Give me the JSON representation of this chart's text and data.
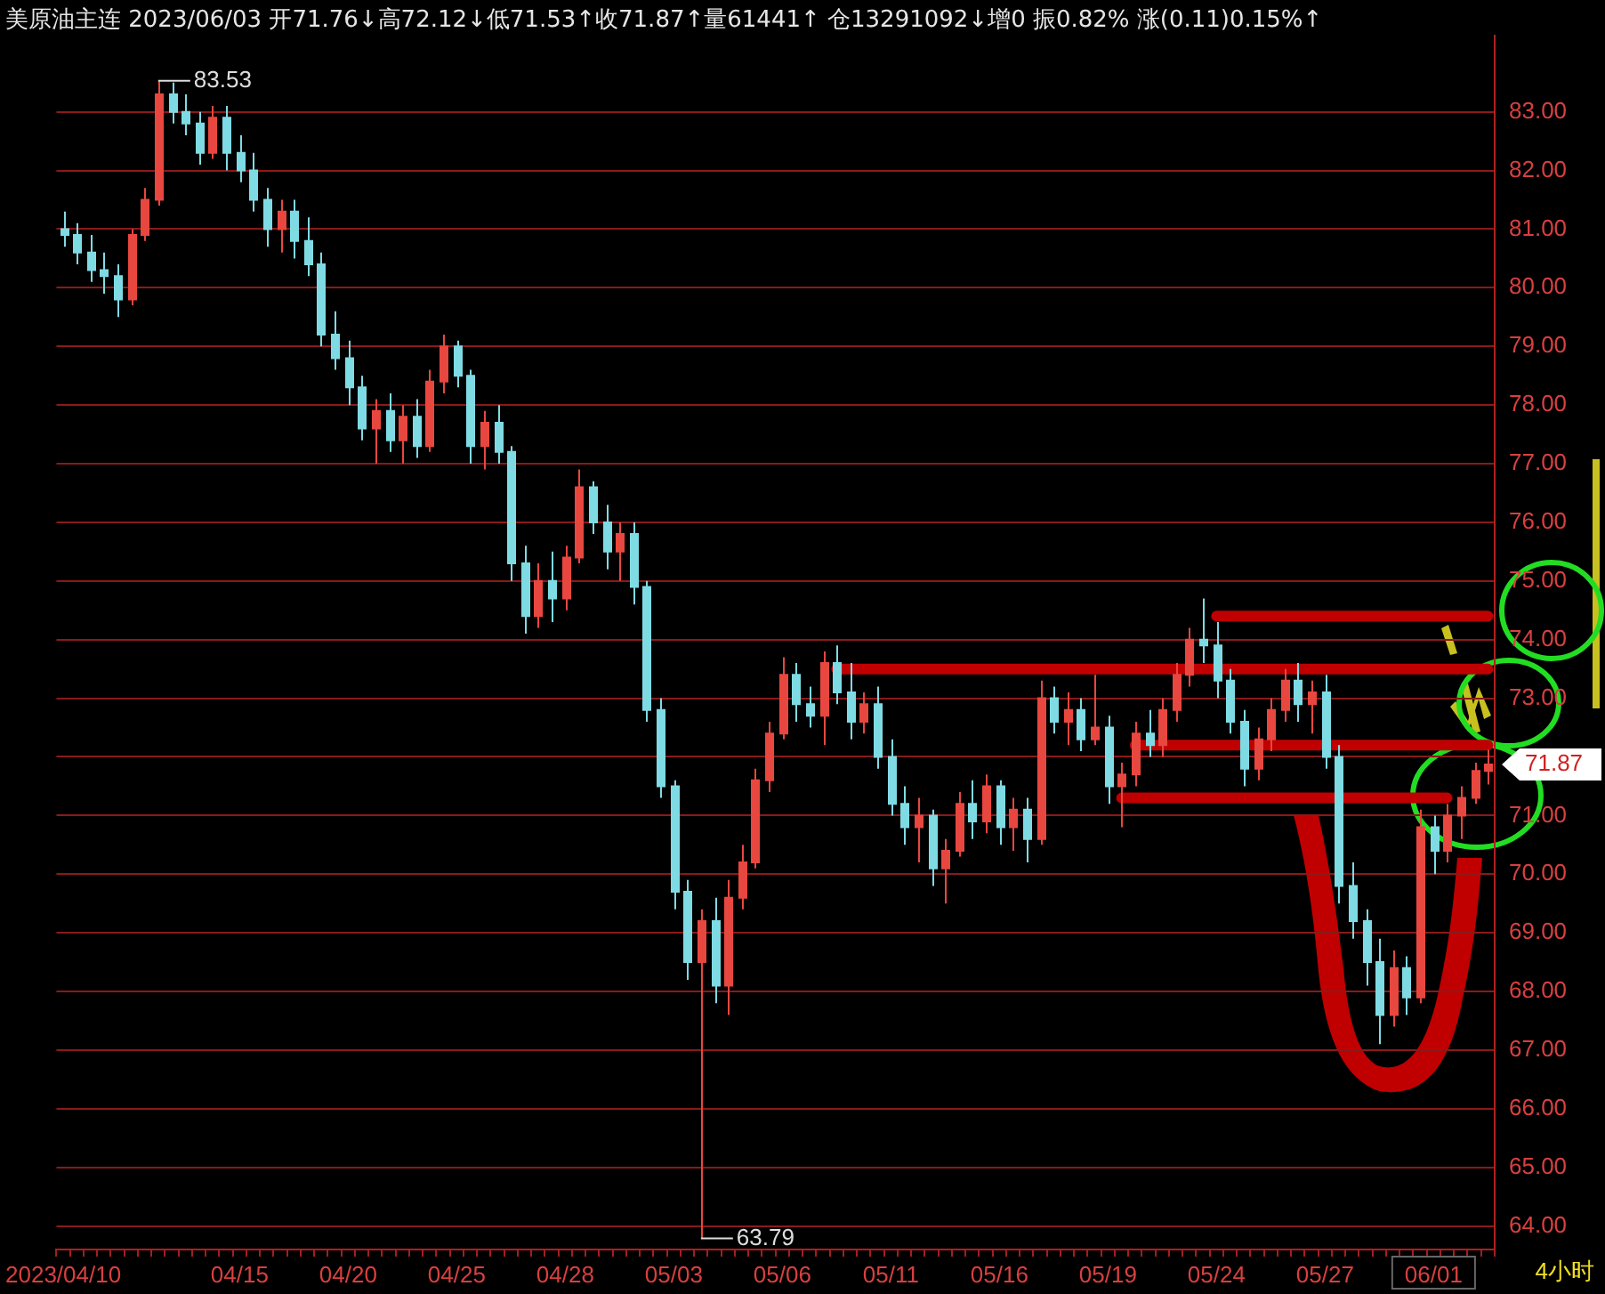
{
  "chart_data": {
    "type": "candlestick",
    "title": "美原油主连 2023/06/03 开71.76↓高72.12↓低71.53↑收71.87↑量61441↑ 仓13291092↓增0 振0.82% 涨(0.11)0.15%↑",
    "categories": [
      "2023/04/10",
      null,
      null,
      null,
      null,
      null,
      null,
      null,
      null,
      null,
      null,
      null,
      null,
      "04/15",
      null,
      null,
      null,
      null,
      null,
      null,
      null,
      "04/20",
      null,
      null,
      null,
      null,
      null,
      null,
      null,
      "04/25",
      null,
      null,
      null,
      null,
      null,
      null,
      null,
      "04/28",
      null,
      null,
      null,
      null,
      null,
      null,
      null,
      "05/03",
      null,
      null,
      null,
      null,
      null,
      null,
      null,
      "05/06",
      null,
      null,
      null,
      null,
      null,
      null,
      null,
      "05/11",
      null,
      null,
      null,
      null,
      null,
      null,
      null,
      "05/16",
      null,
      null,
      null,
      null,
      null,
      null,
      null,
      "05/19",
      null,
      null,
      null,
      null,
      null,
      null,
      null,
      "05/24",
      null,
      null,
      null,
      null,
      null,
      null,
      null,
      "05/27",
      null,
      null,
      null,
      null,
      null,
      null,
      null,
      "06/01",
      null,
      null,
      null,
      null
    ],
    "ohlc": [
      [
        81.0,
        81.3,
        80.7,
        80.9
      ],
      [
        80.9,
        81.1,
        80.4,
        80.6
      ],
      [
        80.6,
        80.9,
        80.1,
        80.3
      ],
      [
        80.3,
        80.6,
        79.9,
        80.2
      ],
      [
        80.2,
        80.4,
        79.5,
        79.8
      ],
      [
        79.8,
        81.0,
        79.7,
        80.9
      ],
      [
        80.9,
        81.7,
        80.8,
        81.5
      ],
      [
        81.5,
        83.53,
        81.4,
        83.3
      ],
      [
        83.3,
        83.5,
        82.8,
        83.0
      ],
      [
        83.0,
        83.3,
        82.6,
        82.8
      ],
      [
        82.8,
        83.0,
        82.1,
        82.3
      ],
      [
        82.3,
        83.1,
        82.2,
        82.9
      ],
      [
        82.9,
        83.1,
        82.0,
        82.3
      ],
      [
        82.3,
        82.6,
        81.8,
        82.0
      ],
      [
        82.0,
        82.3,
        81.3,
        81.5
      ],
      [
        81.5,
        81.7,
        80.7,
        81.0
      ],
      [
        81.0,
        81.5,
        80.6,
        81.3
      ],
      [
        81.3,
        81.5,
        80.5,
        80.8
      ],
      [
        80.8,
        81.2,
        80.2,
        80.4
      ],
      [
        80.4,
        80.6,
        79.0,
        79.2
      ],
      [
        79.2,
        79.6,
        78.6,
        78.8
      ],
      [
        78.8,
        79.1,
        78.0,
        78.3
      ],
      [
        78.3,
        78.5,
        77.4,
        77.6
      ],
      [
        77.6,
        78.1,
        77.0,
        77.9
      ],
      [
        77.9,
        78.2,
        77.2,
        77.4
      ],
      [
        77.4,
        78.0,
        77.0,
        77.8
      ],
      [
        77.8,
        78.1,
        77.1,
        77.3
      ],
      [
        77.3,
        78.6,
        77.2,
        78.4
      ],
      [
        78.4,
        79.2,
        78.2,
        79.0
      ],
      [
        79.0,
        79.1,
        78.3,
        78.5
      ],
      [
        78.5,
        78.6,
        77.0,
        77.3
      ],
      [
        77.3,
        77.9,
        76.9,
        77.7
      ],
      [
        77.7,
        78.0,
        77.0,
        77.2
      ],
      [
        77.2,
        77.3,
        75.0,
        75.3
      ],
      [
        75.3,
        75.6,
        74.1,
        74.4
      ],
      [
        74.4,
        75.3,
        74.2,
        75.0
      ],
      [
        75.0,
        75.5,
        74.3,
        74.7
      ],
      [
        74.7,
        75.6,
        74.5,
        75.4
      ],
      [
        75.4,
        76.9,
        75.3,
        76.6
      ],
      [
        76.6,
        76.7,
        75.8,
        76.0
      ],
      [
        76.0,
        76.3,
        75.2,
        75.5
      ],
      [
        75.5,
        76.0,
        75.0,
        75.8
      ],
      [
        75.8,
        76.0,
        74.6,
        74.9
      ],
      [
        74.9,
        75.0,
        72.6,
        72.8
      ],
      [
        72.8,
        73.0,
        71.3,
        71.5
      ],
      [
        71.5,
        71.6,
        69.4,
        69.7
      ],
      [
        69.7,
        69.9,
        68.2,
        68.5
      ],
      [
        68.5,
        69.4,
        63.79,
        69.2
      ],
      [
        69.2,
        69.6,
        67.8,
        68.1
      ],
      [
        68.1,
        69.9,
        67.6,
        69.6
      ],
      [
        69.6,
        70.5,
        69.4,
        70.2
      ],
      [
        70.2,
        71.8,
        70.1,
        71.6
      ],
      [
        71.6,
        72.6,
        71.4,
        72.4
      ],
      [
        72.4,
        73.7,
        72.3,
        73.4
      ],
      [
        73.4,
        73.6,
        72.6,
        72.9
      ],
      [
        72.9,
        73.2,
        72.5,
        72.7
      ],
      [
        72.7,
        73.8,
        72.2,
        73.6
      ],
      [
        73.6,
        73.9,
        72.9,
        73.1
      ],
      [
        73.1,
        73.6,
        72.3,
        72.6
      ],
      [
        72.6,
        73.1,
        72.4,
        72.9
      ],
      [
        72.9,
        73.2,
        71.8,
        72.0
      ],
      [
        72.0,
        72.3,
        71.0,
        71.2
      ],
      [
        71.2,
        71.5,
        70.5,
        70.8
      ],
      [
        70.8,
        71.3,
        70.2,
        71.0
      ],
      [
        71.0,
        71.1,
        69.8,
        70.1
      ],
      [
        70.1,
        70.6,
        69.5,
        70.4
      ],
      [
        70.4,
        71.4,
        70.3,
        71.2
      ],
      [
        71.2,
        71.6,
        70.6,
        70.9
      ],
      [
        70.9,
        71.7,
        70.7,
        71.5
      ],
      [
        71.5,
        71.6,
        70.5,
        70.8
      ],
      [
        70.8,
        71.3,
        70.4,
        71.1
      ],
      [
        71.1,
        71.3,
        70.2,
        70.6
      ],
      [
        70.6,
        73.3,
        70.5,
        73.0
      ],
      [
        73.0,
        73.2,
        72.4,
        72.6
      ],
      [
        72.6,
        73.1,
        72.2,
        72.8
      ],
      [
        72.8,
        73.0,
        72.1,
        72.3
      ],
      [
        72.3,
        73.4,
        72.2,
        72.5
      ],
      [
        72.5,
        72.7,
        71.2,
        71.5
      ],
      [
        71.5,
        71.9,
        70.8,
        71.7
      ],
      [
        71.7,
        72.6,
        71.5,
        72.4
      ],
      [
        72.4,
        72.8,
        72.0,
        72.2
      ],
      [
        72.2,
        73.0,
        72.0,
        72.8
      ],
      [
        72.8,
        73.6,
        72.6,
        73.4
      ],
      [
        73.4,
        74.2,
        73.2,
        74.0
      ],
      [
        74.0,
        74.7,
        73.6,
        73.9
      ],
      [
        73.9,
        74.3,
        73.0,
        73.3
      ],
      [
        73.3,
        73.5,
        72.4,
        72.6
      ],
      [
        72.6,
        72.8,
        71.5,
        71.8
      ],
      [
        71.8,
        72.5,
        71.6,
        72.3
      ],
      [
        72.3,
        73.0,
        72.1,
        72.8
      ],
      [
        72.8,
        73.5,
        72.6,
        73.3
      ],
      [
        73.3,
        73.6,
        72.6,
        72.9
      ],
      [
        72.9,
        73.3,
        72.4,
        73.1
      ],
      [
        73.1,
        73.4,
        71.8,
        72.0
      ],
      [
        72.0,
        72.2,
        69.5,
        69.8
      ],
      [
        69.8,
        70.2,
        68.9,
        69.2
      ],
      [
        69.2,
        69.4,
        68.1,
        68.5
      ],
      [
        68.5,
        68.9,
        67.1,
        67.6
      ],
      [
        67.6,
        68.7,
        67.4,
        68.4
      ],
      [
        68.4,
        68.6,
        67.6,
        67.9
      ],
      [
        67.9,
        71.1,
        67.8,
        70.8
      ],
      [
        70.8,
        71.0,
        70.0,
        70.4
      ],
      [
        70.4,
        71.2,
        70.2,
        71.0
      ],
      [
        71.0,
        71.5,
        70.6,
        71.3
      ],
      [
        71.3,
        71.9,
        71.2,
        71.76
      ],
      [
        71.76,
        72.12,
        71.53,
        71.87
      ]
    ],
    "colors": [
      "#7fdbe3",
      "#7fdbe3",
      "#7fdbe3",
      "#7fdbe3",
      "#7fdbe3",
      "#e8473f",
      "#e8473f",
      "#e8473f",
      "#7fdbe3",
      "#7fdbe3",
      "#7fdbe3",
      "#e8473f",
      "#7fdbe3",
      "#7fdbe3",
      "#7fdbe3",
      "#7fdbe3",
      "#e8473f",
      "#7fdbe3",
      "#7fdbe3",
      "#7fdbe3",
      "#7fdbe3",
      "#7fdbe3",
      "#7fdbe3",
      "#e8473f",
      "#7fdbe3",
      "#e8473f",
      "#7fdbe3",
      "#e8473f",
      "#e8473f",
      "#7fdbe3",
      "#7fdbe3",
      "#e8473f",
      "#7fdbe3",
      "#7fdbe3",
      "#7fdbe3",
      "#e8473f",
      "#7fdbe3",
      "#e8473f",
      "#e8473f",
      "#7fdbe3",
      "#7fdbe3",
      "#e8473f",
      "#7fdbe3",
      "#7fdbe3",
      "#7fdbe3",
      "#7fdbe3",
      "#7fdbe3",
      "#e8473f",
      "#7fdbe3",
      "#e8473f",
      "#e8473f",
      "#e8473f",
      "#e8473f",
      "#e8473f",
      "#7fdbe3",
      "#7fdbe3",
      "#e8473f",
      "#7fdbe3",
      "#7fdbe3",
      "#e8473f",
      "#7fdbe3",
      "#7fdbe3",
      "#7fdbe3",
      "#e8473f",
      "#7fdbe3",
      "#e8473f",
      "#e8473f",
      "#7fdbe3",
      "#e8473f",
      "#7fdbe3",
      "#e8473f",
      "#7fdbe3",
      "#e8473f",
      "#7fdbe3",
      "#e8473f",
      "#7fdbe3",
      "#e8473f",
      "#7fdbe3",
      "#e8473f",
      "#e8473f",
      "#7fdbe3",
      "#e8473f",
      "#e8473f",
      "#e8473f",
      "#7fdbe3",
      "#7fdbe3",
      "#7fdbe3",
      "#7fdbe3",
      "#e8473f",
      "#e8473f",
      "#e8473f",
      "#7fdbe3",
      "#e8473f",
      "#7fdbe3",
      "#7fdbe3",
      "#7fdbe3",
      "#7fdbe3",
      "#7fdbe3",
      "#e8473f",
      "#7fdbe3",
      "#e8473f",
      "#7fdbe3",
      "#e8473f",
      "#e8473f",
      "#e8473f",
      "#e8473f"
    ],
    "series": [
      {
        "type": "line",
        "color": "#c00000",
        "values": [
          null,
          null,
          null,
          null,
          null,
          null,
          null,
          null,
          null,
          null,
          null,
          null,
          null,
          null,
          null,
          null,
          null,
          null,
          null,
          null,
          null,
          null,
          null,
          null,
          null,
          null,
          null,
          null,
          null,
          null,
          null,
          null,
          null,
          null,
          null,
          null,
          null,
          null,
          null,
          null,
          null,
          null,
          null,
          null,
          null,
          null,
          null,
          null,
          null,
          null,
          null,
          null,
          null,
          null,
          null,
          null,
          null,
          null,
          null,
          null,
          null,
          null,
          null,
          null,
          null,
          null,
          null,
          null,
          null,
          null,
          null,
          null,
          null,
          null,
          null,
          null,
          null,
          null,
          null,
          null,
          null,
          null,
          null,
          null,
          null,
          74.4,
          74.4,
          74.4,
          74.4,
          74.4,
          74.4,
          74.4,
          74.4,
          74.4,
          74.4,
          74.4,
          74.4,
          74.4,
          74.4,
          74.4,
          74.4,
          74.4,
          74.4,
          74.4,
          74.4,
          74.4
        ]
      },
      {
        "type": "line",
        "color": "#c00000",
        "values": [
          null,
          null,
          null,
          null,
          null,
          null,
          null,
          null,
          null,
          null,
          null,
          null,
          null,
          null,
          null,
          null,
          null,
          null,
          null,
          null,
          null,
          null,
          null,
          null,
          null,
          null,
          null,
          null,
          null,
          null,
          null,
          null,
          null,
          null,
          null,
          null,
          null,
          null,
          null,
          null,
          null,
          null,
          null,
          null,
          null,
          null,
          null,
          null,
          null,
          null,
          null,
          null,
          null,
          null,
          null,
          null,
          null,
          73.5,
          73.5,
          73.5,
          73.5,
          73.5,
          73.5,
          73.5,
          73.5,
          73.5,
          73.5,
          73.5,
          73.5,
          73.5,
          73.5,
          73.5,
          73.5,
          73.5,
          73.5,
          73.5,
          73.5,
          73.5,
          73.5,
          73.5,
          73.5,
          73.5,
          73.5,
          73.5,
          73.5,
          73.5,
          73.5,
          73.5,
          73.5,
          73.5,
          73.5,
          73.5,
          73.5,
          73.5,
          73.5,
          73.5,
          73.5,
          73.5,
          73.5,
          73.5,
          73.5,
          73.5,
          73.5,
          73.5,
          73.5,
          73.5
        ]
      },
      {
        "type": "line",
        "color": "#c00000",
        "values": [
          null,
          null,
          null,
          null,
          null,
          null,
          null,
          null,
          null,
          null,
          null,
          null,
          null,
          null,
          null,
          null,
          null,
          null,
          null,
          null,
          null,
          null,
          null,
          null,
          null,
          null,
          null,
          null,
          null,
          null,
          null,
          null,
          null,
          null,
          null,
          null,
          null,
          null,
          null,
          null,
          null,
          null,
          null,
          null,
          null,
          null,
          null,
          null,
          null,
          null,
          null,
          null,
          null,
          null,
          null,
          null,
          null,
          null,
          null,
          null,
          null,
          null,
          null,
          null,
          null,
          null,
          null,
          null,
          null,
          null,
          null,
          null,
          null,
          null,
          null,
          null,
          null,
          null,
          null,
          72.2,
          72.2,
          72.2,
          72.2,
          72.2,
          72.2,
          72.2,
          72.2,
          72.2,
          72.2,
          72.2,
          72.2,
          72.2,
          72.2,
          72.2,
          72.2,
          72.2,
          72.2,
          72.2,
          72.2,
          72.2,
          72.2,
          72.2,
          72.2,
          72.2,
          72.2,
          72.2
        ]
      },
      {
        "type": "line",
        "color": "#c00000",
        "values": [
          null,
          null,
          null,
          null,
          null,
          null,
          null,
          null,
          null,
          null,
          null,
          null,
          null,
          null,
          null,
          null,
          null,
          null,
          null,
          null,
          null,
          null,
          null,
          null,
          null,
          null,
          null,
          null,
          null,
          null,
          null,
          null,
          null,
          null,
          null,
          null,
          null,
          null,
          null,
          null,
          null,
          null,
          null,
          null,
          null,
          null,
          null,
          null,
          null,
          null,
          null,
          null,
          null,
          null,
          null,
          null,
          null,
          null,
          null,
          null,
          null,
          null,
          null,
          null,
          null,
          null,
          null,
          null,
          null,
          null,
          null,
          null,
          null,
          null,
          null,
          null,
          null,
          null,
          71.3,
          71.3,
          71.3,
          71.3,
          71.3,
          71.3,
          71.3,
          71.3,
          71.3,
          71.3,
          71.3,
          71.3,
          71.3,
          71.3,
          71.3,
          71.3,
          71.3,
          71.3,
          71.3,
          71.3,
          71.3,
          71.3,
          71.3,
          71.3,
          71.3,
          null,
          null,
          null
        ]
      }
    ],
    "annotations": [
      "83.53",
      "63.79",
      "71.87",
      "4小时"
    ],
    "ylim": [
      63.6,
      84.3
    ],
    "yticks": [
      {
        "value": 64,
        "label": "64.00"
      },
      {
        "value": 65,
        "label": "65.00"
      },
      {
        "value": 66,
        "label": "66.00"
      },
      {
        "value": 67,
        "label": "67.00"
      },
      {
        "value": 68,
        "label": "68.00"
      },
      {
        "value": 69,
        "label": "69.00"
      },
      {
        "value": 70,
        "label": "70.00"
      },
      {
        "value": 71,
        "label": "71.00"
      },
      {
        "value": 72,
        "label": null
      },
      {
        "value": 73,
        "label": "73.00"
      },
      {
        "value": 74,
        "label": "74.00"
      },
      {
        "value": 75,
        "label": "75.00"
      },
      {
        "value": 76,
        "label": "76.00"
      },
      {
        "value": 77,
        "label": "77.00"
      },
      {
        "value": 78,
        "label": "78.00"
      },
      {
        "value": 79,
        "label": "79.00"
      },
      {
        "value": 80,
        "label": "80.00"
      },
      {
        "value": 81,
        "label": "81.00"
      },
      {
        "value": 82,
        "label": "82.00"
      },
      {
        "value": 83,
        "label": "83.00"
      }
    ],
    "grid": "y",
    "legend": false
  }
}
